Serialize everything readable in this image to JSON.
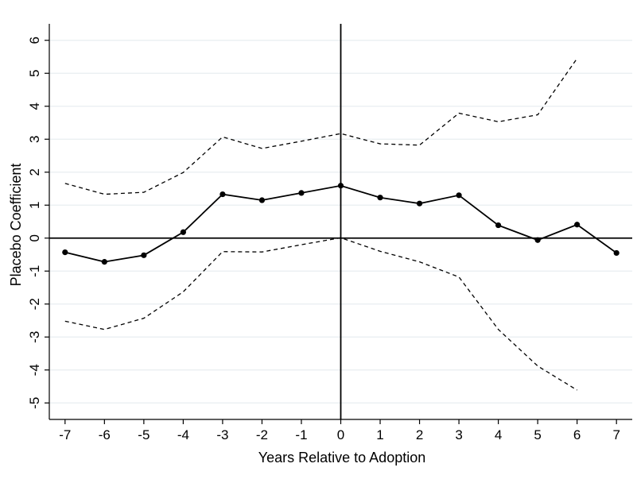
{
  "chart_data": {
    "type": "line",
    "title": "",
    "xlabel": "Years Relative to Adoption",
    "ylabel": "Placebo Coefficient",
    "xlim": [
      -7.4,
      7.4
    ],
    "ylim": [
      -5.5,
      6.5
    ],
    "x_ticks": [
      -7,
      -6,
      -5,
      -4,
      -3,
      -2,
      -1,
      0,
      1,
      2,
      3,
      4,
      5,
      6,
      7
    ],
    "y_ticks": [
      -5,
      -4,
      -3,
      -2,
      -1,
      0,
      1,
      2,
      3,
      4,
      5,
      6
    ],
    "grid": "horizontal",
    "legend": "none",
    "reference_lines": {
      "horizontal_y": 0,
      "vertical_x": 0
    },
    "series": [
      {
        "style": "solid-with-markers",
        "x": [
          -7,
          -6,
          -5,
          -4,
          -3,
          -2,
          -1,
          0,
          1,
          2,
          3,
          4,
          5,
          6,
          7
        ],
        "y": [
          -0.43,
          -0.72,
          -0.52,
          0.18,
          1.33,
          1.15,
          1.37,
          1.59,
          1.23,
          1.05,
          1.3,
          0.39,
          -0.06,
          0.41,
          -0.45
        ]
      },
      {
        "style": "dashed",
        "x": [
          -7,
          -6,
          -5,
          -4,
          -3,
          -2,
          -1,
          0,
          1,
          2,
          3,
          4,
          5,
          6
        ],
        "y": [
          1.66,
          1.33,
          1.39,
          1.99,
          3.07,
          2.72,
          2.94,
          3.17,
          2.86,
          2.82,
          3.79,
          3.53,
          3.74,
          5.45
        ]
      },
      {
        "style": "dashed",
        "x": [
          -7,
          -6,
          -5,
          -4,
          -3,
          -2,
          -1,
          0,
          1,
          2,
          3,
          4,
          5,
          6
        ],
        "y": [
          -2.52,
          -2.77,
          -2.43,
          -1.63,
          -0.41,
          -0.42,
          -0.2,
          0.01,
          -0.4,
          -0.72,
          -1.18,
          -2.77,
          -3.88,
          -4.61
        ]
      }
    ],
    "colors": {
      "line": "#000000",
      "grid": "#e8eef0",
      "background": "#ffffff"
    }
  }
}
